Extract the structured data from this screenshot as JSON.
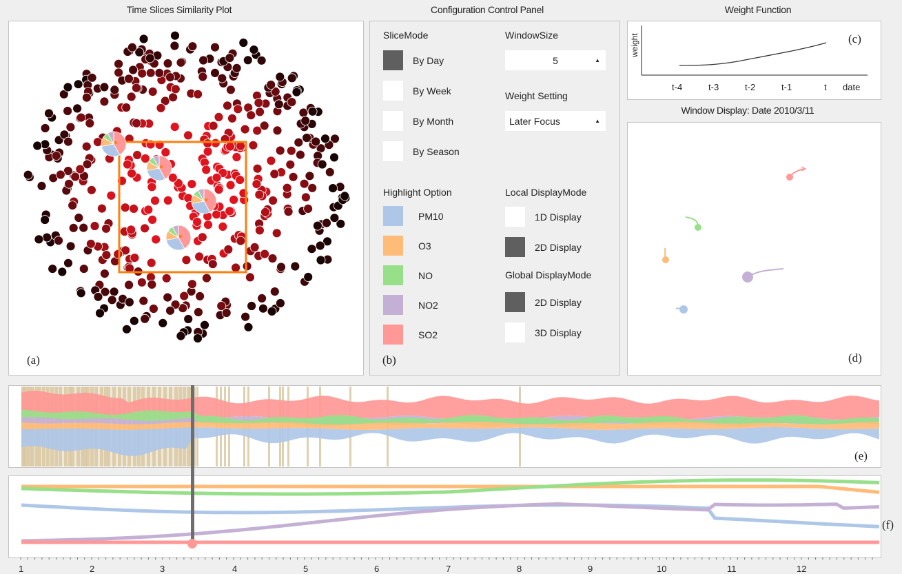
{
  "titles": {
    "similarity": "Time Slices Similarity Plot",
    "config": "Configuration Control Panel",
    "weight": "Weight Function",
    "window_display": "Window Display: Date 2010/3/11"
  },
  "panel_tags": {
    "a": "(a)",
    "b": "(b)",
    "c": "(c)",
    "d": "(d)",
    "e": "(e)",
    "f": "(f)"
  },
  "config": {
    "slice_mode": {
      "label": "SliceMode",
      "options": [
        {
          "label": "By Day",
          "selected": true
        },
        {
          "label": "By Week",
          "selected": false
        },
        {
          "label": "By Month",
          "selected": false
        },
        {
          "label": "By Season",
          "selected": false
        }
      ]
    },
    "window_size": {
      "label": "WindowSize",
      "value": "5"
    },
    "weight_setting": {
      "label": "Weight Setting",
      "value": "Later Focus"
    },
    "highlight": {
      "label": "Highlight Option",
      "options": [
        {
          "label": "PM10",
          "color": "#aec7e8"
        },
        {
          "label": "O3",
          "color": "#ffbb78"
        },
        {
          "label": "NO",
          "color": "#98df8a"
        },
        {
          "label": "NO2",
          "color": "#c5b0d5"
        },
        {
          "label": "SO2",
          "color": "#ff9896"
        }
      ]
    },
    "local_mode": {
      "label": "Local DisplayMode",
      "options": [
        {
          "label": "1D Display",
          "selected": false
        },
        {
          "label": "2D Display",
          "selected": true
        }
      ]
    },
    "global_mode": {
      "label": "Global DisplayMode",
      "options": [
        {
          "label": "2D Display",
          "selected": true
        },
        {
          "label": "3D Display",
          "selected": false
        }
      ]
    }
  },
  "weight_function": {
    "ylabel": "weight",
    "ticks": [
      "t-4",
      "t-3",
      "t-2",
      "t-1",
      "t",
      "date"
    ]
  },
  "timeline": {
    "ticks": [
      "1",
      "2",
      "3",
      "4",
      "5",
      "6",
      "7",
      "8",
      "9",
      "10",
      "11",
      "12"
    ],
    "cursor_value": 3.4
  },
  "colors": {
    "pm10": "#aec7e8",
    "o3": "#ffbb78",
    "no": "#98df8a",
    "no2": "#c5b0d5",
    "so2": "#ff9896",
    "highlight_box": "#ff7f0e",
    "dot_red": "#e0141e",
    "dot_dark": "#1a0404"
  }
}
